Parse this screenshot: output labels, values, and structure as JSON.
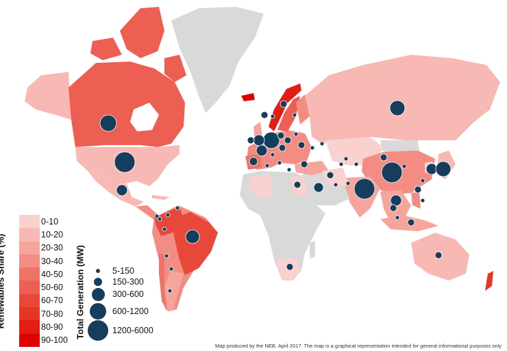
{
  "colors": {
    "no_data": "#d9d9d9",
    "bubble": "#163e5c",
    "share_scale": [
      "#f9d2d0",
      "#f8b9b4",
      "#f6a59d",
      "#f38d84",
      "#ef7468",
      "#ec5f52",
      "#e8483a",
      "#e43525",
      "#e21d11",
      "#e00000"
    ]
  },
  "legend_share": {
    "title": "Renewables Share (%)",
    "items": [
      {
        "label": "0-10",
        "color": "#f9d2d0"
      },
      {
        "label": "10-20",
        "color": "#f8b9b4"
      },
      {
        "label": "20-30",
        "color": "#f6a59d"
      },
      {
        "label": "30-40",
        "color": "#f38d84"
      },
      {
        "label": "40-50",
        "color": "#ef7468"
      },
      {
        "label": "50-60",
        "color": "#ec5f52"
      },
      {
        "label": "60-70",
        "color": "#e8483a"
      },
      {
        "label": "70-80",
        "color": "#e43525"
      },
      {
        "label": "80-90",
        "color": "#e21d11"
      },
      {
        "label": "90-100",
        "color": "#e00000"
      }
    ]
  },
  "legend_generation": {
    "title": "Total Generation (MW)",
    "items": [
      {
        "label": "5-150",
        "size_class": 1
      },
      {
        "label": "150-300",
        "size_class": 2
      },
      {
        "label": "300-600",
        "size_class": 3
      },
      {
        "label": "600-1200",
        "size_class": 4
      },
      {
        "label": "1200-6000",
        "size_class": 5
      }
    ]
  },
  "credit": "Map produced by the NEB. April 2017. The map is a graphical representation intended for general informational purposes only"
}
